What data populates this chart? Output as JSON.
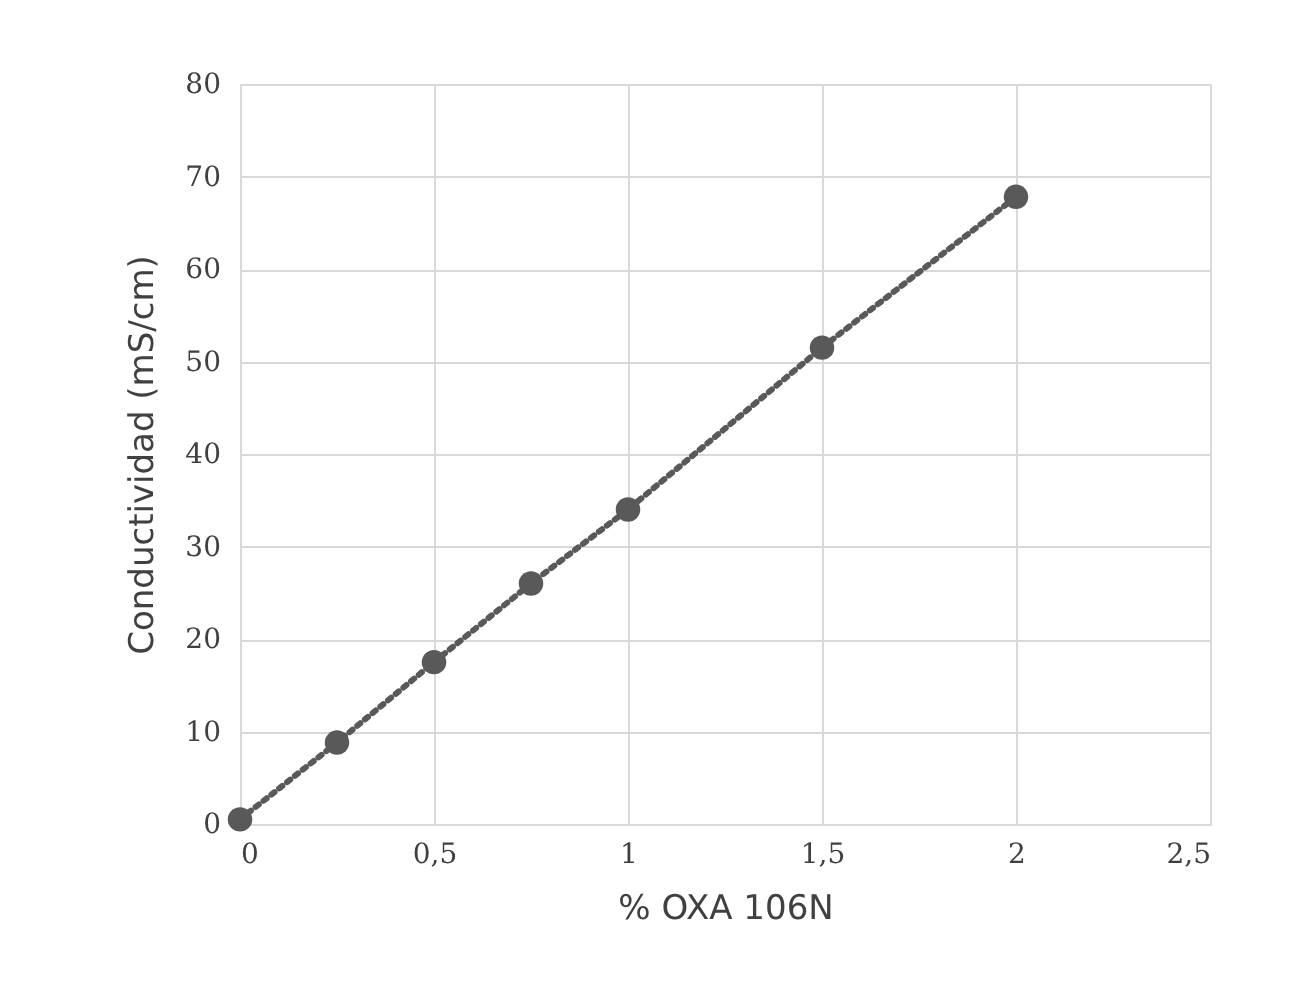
{
  "chart_data": {
    "type": "line",
    "xlabel": "% OXA 106N",
    "ylabel": "Conductividad (mS/cm)",
    "x": [
      0,
      0.25,
      0.5,
      0.75,
      1,
      1.5,
      2
    ],
    "series": [
      {
        "color": "#595959",
        "values": [
          0.5,
          8.8,
          17.5,
          26,
          34,
          51.5,
          67.8
        ],
        "marker": "circle",
        "line_style": "dotted"
      }
    ],
    "xlim": [
      0,
      2.5
    ],
    "xticks": [
      {
        "value": 0,
        "label": "0"
      },
      {
        "value": 0.5,
        "label": "0,5"
      },
      {
        "value": 1,
        "label": "1"
      },
      {
        "value": 1.5,
        "label": "1,5"
      },
      {
        "value": 2,
        "label": "2"
      },
      {
        "value": 2.5,
        "label": "2,5"
      }
    ],
    "ylim": [
      0,
      80
    ],
    "yticks": [
      0,
      10,
      20,
      30,
      40,
      50,
      60,
      70,
      80
    ],
    "grid": true
  }
}
